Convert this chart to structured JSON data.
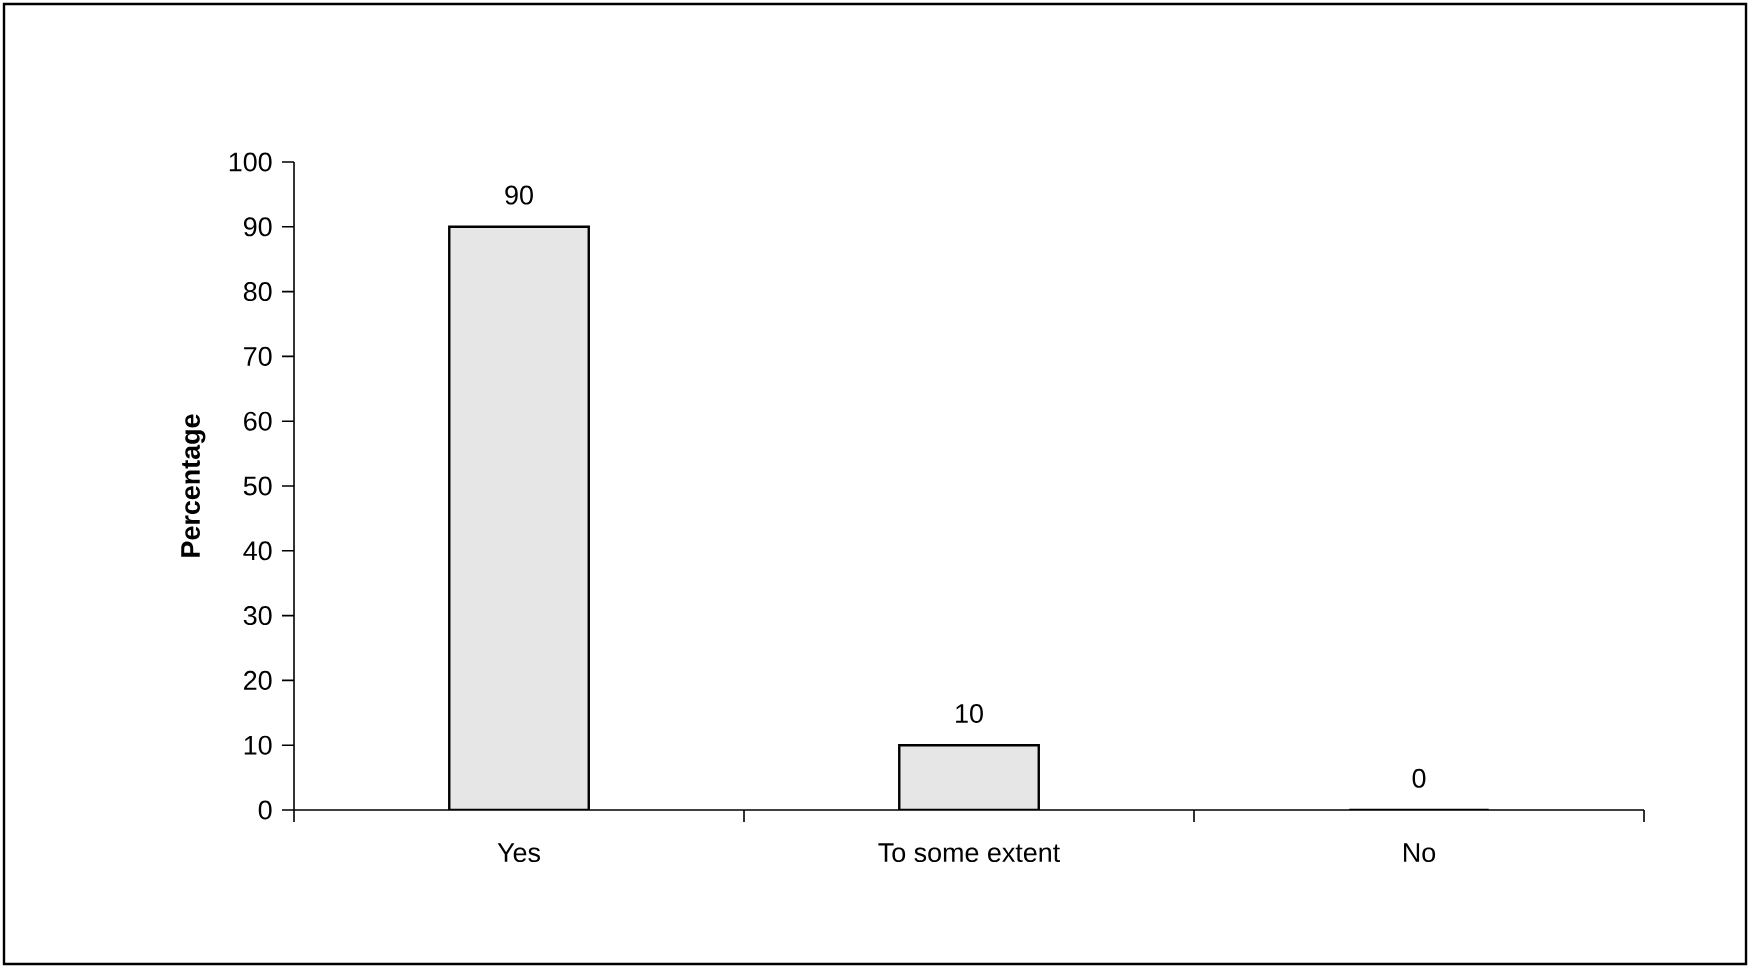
{
  "chart_data": {
    "type": "bar",
    "ylabel": "Percentage",
    "categories": [
      "Yes",
      "To some extent",
      "No"
    ],
    "values": [
      90,
      10,
      0
    ],
    "color": "#e6e6e6",
    "ylim": [
      0,
      100
    ],
    "yticks": [
      0,
      10,
      20,
      30,
      40,
      50,
      60,
      70,
      80,
      90,
      100
    ],
    "data_labels": true,
    "grid": false
  }
}
